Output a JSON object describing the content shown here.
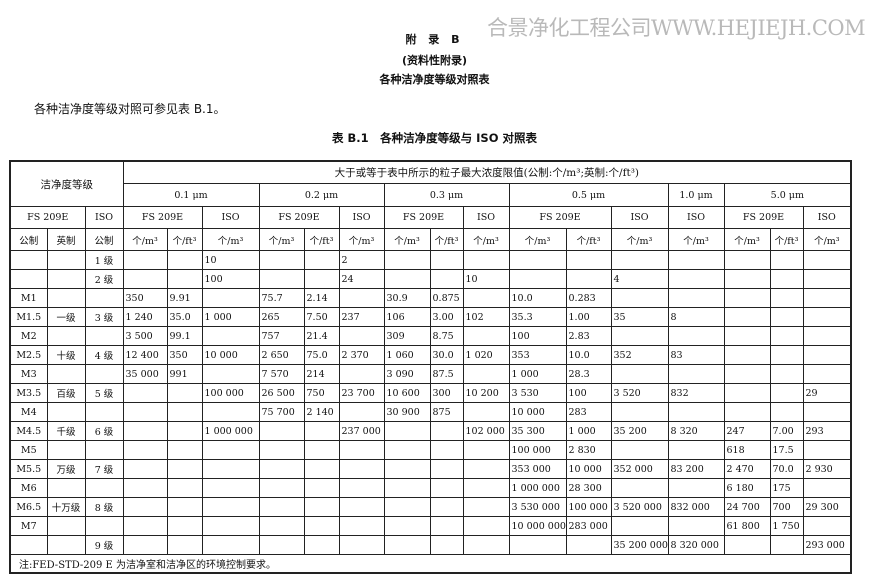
{
  "watermark": "合景净化工程公司WWW.HEJIEJH.COM",
  "appendix": {
    "title": "附 录 B",
    "subtitle": "(资料性附录)",
    "heading": "各种洁净度等级对照表"
  },
  "intro": "各种洁净度等级对照可参见表 B.1。",
  "table_caption": "表 B.1　各种洁净度等级与 ISO 对照表",
  "table": {
    "corner": "洁净度等级",
    "span_header": "大于或等于表中所示的粒子最大浓度限值(公制:个/m³;英制:个/ft³)",
    "sizes": [
      "0.1 μm",
      "0.2 μm",
      "0.3 μm",
      "0.5 μm",
      "1.0 μm",
      "5.0 μm"
    ],
    "std_fs": "FS 209E",
    "std_iso": "ISO",
    "unit_metric_label": "公制",
    "unit_english_label": "英制",
    "unit_m3": "个/m³",
    "unit_ft3": "个/ft³",
    "rows": [
      [
        "",
        "",
        "1 级",
        "",
        "",
        "10",
        "",
        "",
        "2",
        "",
        "",
        "",
        "",
        "",
        "",
        "",
        "",
        "",
        ""
      ],
      [
        "",
        "",
        "2 级",
        "",
        "",
        "100",
        "",
        "",
        "24",
        "",
        "",
        "10",
        "",
        "",
        "4",
        "",
        "",
        "",
        ""
      ],
      [
        "M1",
        "",
        "",
        "350",
        "9.91",
        "",
        "75.7",
        "2.14",
        "",
        "30.9",
        "0.875",
        "",
        "10.0",
        "0.283",
        "",
        "",
        "",
        "",
        ""
      ],
      [
        "M1.5",
        "一级",
        "3 级",
        "1 240",
        "35.0",
        "1 000",
        "265",
        "7.50",
        "237",
        "106",
        "3.00",
        "102",
        "35.3",
        "1.00",
        "35",
        "8",
        "",
        "",
        ""
      ],
      [
        "M2",
        "",
        "",
        "3 500",
        "99.1",
        "",
        "757",
        "21.4",
        "",
        "309",
        "8.75",
        "",
        "100",
        "2.83",
        "",
        "",
        "",
        "",
        ""
      ],
      [
        "M2.5",
        "十级",
        "4 级",
        "12 400",
        "350",
        "10 000",
        "2 650",
        "75.0",
        "2 370",
        "1 060",
        "30.0",
        "1 020",
        "353",
        "10.0",
        "352",
        "83",
        "",
        "",
        ""
      ],
      [
        "M3",
        "",
        "",
        "35 000",
        "991",
        "",
        "7 570",
        "214",
        "",
        "3 090",
        "87.5",
        "",
        "1 000",
        "28.3",
        "",
        "",
        "",
        "",
        ""
      ],
      [
        "M3.5",
        "百级",
        "5 级",
        "",
        "",
        "100 000",
        "26 500",
        "750",
        "23 700",
        "10 600",
        "300",
        "10 200",
        "3 530",
        "100",
        "3 520",
        "832",
        "",
        "",
        "29"
      ],
      [
        "M4",
        "",
        "",
        "",
        "",
        "",
        "75 700",
        "2 140",
        "",
        "30 900",
        "875",
        "",
        "10 000",
        "283",
        "",
        "",
        "",
        "",
        ""
      ],
      [
        "M4.5",
        "千级",
        "6 级",
        "",
        "",
        "1 000 000",
        "",
        "",
        "237 000",
        "",
        "",
        "102 000",
        "35 300",
        "1 000",
        "35 200",
        "8 320",
        "247",
        "7.00",
        "293"
      ],
      [
        "M5",
        "",
        "",
        "",
        "",
        "",
        "",
        "",
        "",
        "",
        "",
        "",
        "100 000",
        "2 830",
        "",
        "",
        "618",
        "17.5",
        ""
      ],
      [
        "M5.5",
        "万级",
        "7 级",
        "",
        "",
        "",
        "",
        "",
        "",
        "",
        "",
        "",
        "353 000",
        "10 000",
        "352 000",
        "83 200",
        "2 470",
        "70.0",
        "2 930"
      ],
      [
        "M6",
        "",
        "",
        "",
        "",
        "",
        "",
        "",
        "",
        "",
        "",
        "",
        "1 000 000",
        "28 300",
        "",
        "",
        "6 180",
        "175",
        ""
      ],
      [
        "M6.5",
        "十万级",
        "8 级",
        "",
        "",
        "",
        "",
        "",
        "",
        "",
        "",
        "",
        "3 530 000",
        "100 000",
        "3 520 000",
        "832 000",
        "24 700",
        "700",
        "29 300"
      ],
      [
        "M7",
        "",
        "",
        "",
        "",
        "",
        "",
        "",
        "",
        "",
        "",
        "",
        "10 000 000",
        "283 000",
        "",
        "",
        "61 800",
        "1 750",
        ""
      ],
      [
        "",
        "",
        "9 级",
        "",
        "",
        "",
        "",
        "",
        "",
        "",
        "",
        "",
        "",
        "",
        "35 200 000",
        "8 320 000",
        "",
        "",
        "293 000"
      ]
    ],
    "note": "注:FED-STD-209 E 为洁净室和洁净区的环境控制要求。"
  }
}
